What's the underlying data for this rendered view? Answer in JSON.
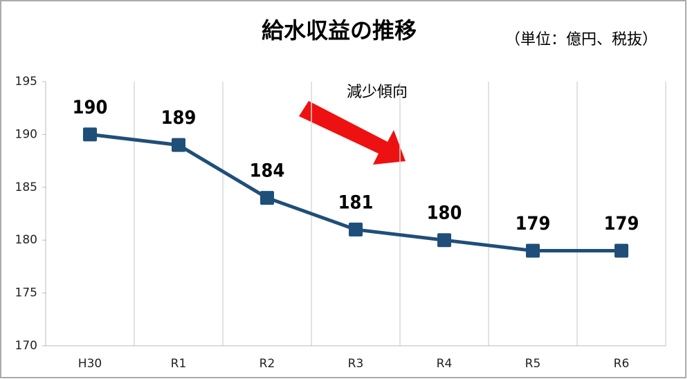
{
  "chart_data": {
    "type": "line",
    "title": "給水収益の推移",
    "subtitle": "（単位：億円、税抜）",
    "annotation": "減少傾向",
    "categories": [
      "H30",
      "R1",
      "R2",
      "R3",
      "R4",
      "R5",
      "R6"
    ],
    "series": [
      {
        "name": "給水収益",
        "color": "#1f4e79",
        "values": [
          190,
          189,
          184,
          181,
          180,
          179,
          179
        ]
      }
    ],
    "ylim": [
      170,
      195
    ],
    "yticks": [
      170,
      175,
      180,
      185,
      190,
      195
    ],
    "grid": true,
    "legend": false
  }
}
